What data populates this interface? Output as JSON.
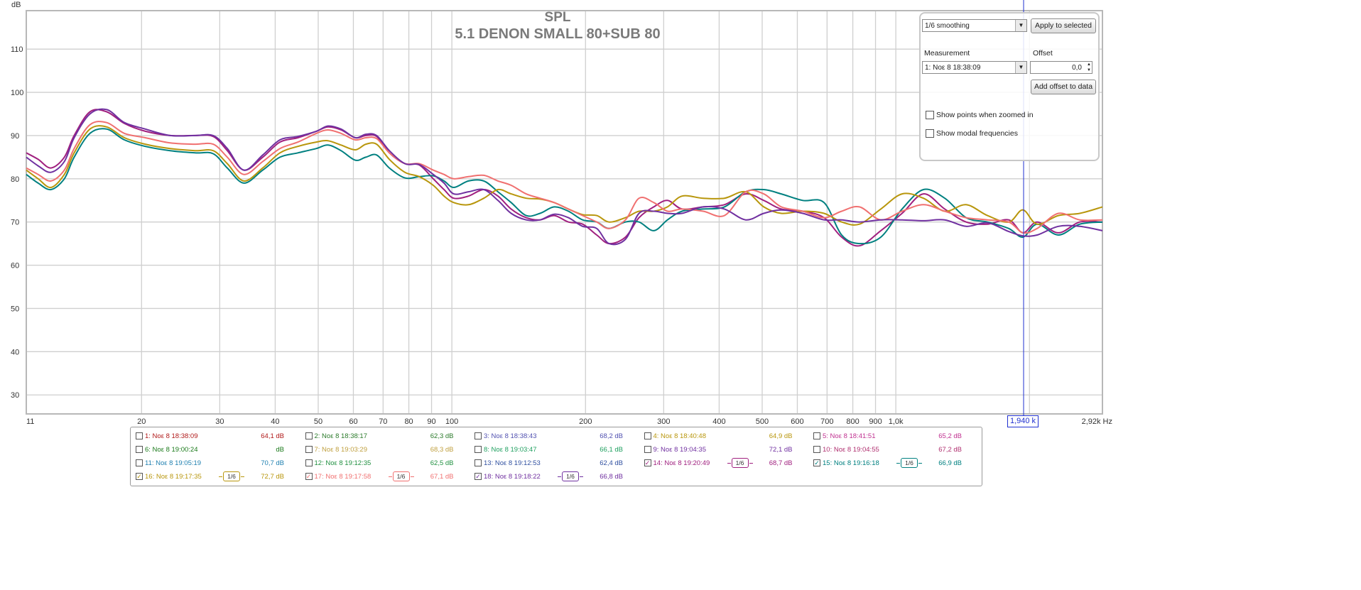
{
  "chart_data": {
    "type": "line",
    "title": "SPL",
    "subtitle": "5.1 DENON SMALL 80+SUB 80",
    "ylabel": "dB",
    "xlabel": "Hz",
    "xscale": "log",
    "xlim": [
      11,
      2920
    ],
    "ylim": [
      25.6,
      118.9
    ],
    "grid": true,
    "y_ticks": [
      30,
      40,
      50,
      60,
      70,
      80,
      90,
      100,
      110
    ],
    "x_ticks": [
      {
        "value": 11,
        "label": "11"
      },
      {
        "value": 20,
        "label": "20"
      },
      {
        "value": 30,
        "label": "30"
      },
      {
        "value": 40,
        "label": "40"
      },
      {
        "value": 50,
        "label": "50"
      },
      {
        "value": 60,
        "label": "60"
      },
      {
        "value": 70,
        "label": "70"
      },
      {
        "value": 80,
        "label": "80"
      },
      {
        "value": 90,
        "label": "90"
      },
      {
        "value": 100,
        "label": "100"
      },
      {
        "value": 200,
        "label": "200"
      },
      {
        "value": 300,
        "label": "300"
      },
      {
        "value": 400,
        "label": "400"
      },
      {
        "value": 500,
        "label": "500"
      },
      {
        "value": 600,
        "label": "600"
      },
      {
        "value": 700,
        "label": "700"
      },
      {
        "value": 800,
        "label": "800"
      },
      {
        "value": 900,
        "label": "900"
      },
      {
        "value": 1000,
        "label": "1,0k"
      },
      {
        "value": 2920,
        "label": "2,92k Hz"
      }
    ],
    "extra_gridlines": [
      2000
    ],
    "cursor": {
      "value": 1940,
      "label": "1,940 k",
      "color": "#2030d0"
    },
    "x": [
      11,
      11.7,
      12.5,
      13.4,
      14.1,
      15.3,
      16.7,
      18.3,
      20.4,
      23.2,
      26.4,
      29,
      31.2,
      34,
      37.5,
      41,
      45,
      49.5,
      52.6,
      56.3,
      60.6,
      64,
      67.7,
      72.3,
      78.4,
      84.4,
      90.8,
      96,
      101,
      109,
      118,
      127,
      136,
      147,
      158,
      170,
      183,
      197,
      212,
      226,
      246,
      264,
      285,
      306,
      330,
      368,
      411,
      459,
      504,
      552,
      617,
      689,
      755,
      828,
      925,
      1033,
      1154,
      1289,
      1440,
      1608,
      1796,
      1933,
      2081,
      2324,
      2596,
      2920
    ],
    "series": [
      {
        "name": "14: Νοε 8 19:20:49",
        "color": "#a0207f",
        "values": [
          86,
          84.5,
          82.5,
          85,
          90,
          95.5,
          95.5,
          92.8,
          91,
          90,
          90,
          89.8,
          86.5,
          82,
          85,
          88.5,
          89.5,
          91,
          92,
          91.3,
          89.5,
          90,
          89.8,
          86,
          83.5,
          83.2,
          80,
          77.5,
          75.5,
          76,
          77.5,
          76,
          73,
          71,
          70.5,
          71.5,
          70,
          69.5,
          67,
          65,
          66.5,
          71,
          73.5,
          75,
          73,
          73.5,
          74,
          76.5,
          75,
          73,
          72.5,
          71,
          66.5,
          64.5,
          68,
          72,
          76.5,
          73,
          70,
          69.5,
          70.5,
          67.5,
          70,
          67.5,
          70,
          70
        ]
      },
      {
        "name": "15: Νοε 8 19:16:18",
        "color": "#008080",
        "values": [
          81,
          79,
          77.5,
          80,
          85,
          90.5,
          91.5,
          89,
          87.5,
          86.5,
          86,
          85.8,
          82.5,
          79,
          82,
          85,
          86,
          87,
          87.8,
          86.5,
          84.3,
          85,
          85.5,
          82.5,
          80.2,
          80.5,
          80.7,
          79.5,
          78,
          79.5,
          79.5,
          77,
          74.5,
          71.5,
          72,
          73.5,
          72.5,
          70.5,
          70,
          68.5,
          70,
          70,
          68,
          70.5,
          72.5,
          73,
          73.5,
          77,
          77.5,
          76.5,
          75,
          74.5,
          67,
          65,
          66.5,
          73,
          77.5,
          75.5,
          71,
          70,
          68.5,
          66.5,
          69.5,
          67,
          69.5,
          70
        ]
      },
      {
        "name": "16: Νοε 8 19:17:35",
        "color": "#b8960c",
        "values": [
          82,
          80,
          78,
          81,
          86,
          91.5,
          92,
          89.5,
          88,
          87,
          86.5,
          86.5,
          83.5,
          79.5,
          82.5,
          86,
          87.5,
          88.5,
          88.8,
          87.8,
          86.7,
          88,
          88,
          84.5,
          81.5,
          80.5,
          78.5,
          76,
          74.5,
          74,
          75.5,
          77.5,
          76.5,
          75.5,
          75.3,
          74.5,
          73,
          71.7,
          71.5,
          70,
          71,
          72.5,
          72.5,
          73.5,
          76,
          75.5,
          75.5,
          77,
          73.5,
          72,
          72.5,
          72,
          70,
          69.5,
          73,
          76.5,
          75.5,
          72.5,
          74,
          71.5,
          70,
          72.8,
          69.5,
          71.5,
          72,
          73.5
        ]
      },
      {
        "name": "17: Νοε 8 19:17:58",
        "color": "#f07070",
        "values": [
          82.5,
          81,
          79.5,
          82,
          87,
          92.5,
          93,
          90.5,
          89.5,
          88.3,
          88,
          88,
          85,
          81,
          84,
          87,
          88.5,
          90.5,
          91.3,
          90.5,
          89,
          89.5,
          89.3,
          86,
          83.5,
          83.5,
          82,
          81,
          80,
          80.5,
          80.8,
          79.5,
          78.5,
          76.5,
          75.5,
          74.5,
          73,
          71.5,
          70,
          68.5,
          70.5,
          75.5,
          74.5,
          72.5,
          73,
          72.5,
          71.5,
          77,
          76.5,
          73.5,
          72.5,
          71,
          72.5,
          73.5,
          70.5,
          72.5,
          74,
          72.5,
          71,
          70.5,
          70,
          67.5,
          68.5,
          72,
          70.5,
          70.5
        ]
      },
      {
        "name": "18: Νοε 8 19:18:22",
        "color": "#7030a0",
        "values": [
          85,
          83,
          81.5,
          84,
          89.5,
          95,
          96,
          93,
          91.5,
          90,
          90,
          90,
          87,
          82,
          85.5,
          89,
          89.8,
          91,
          92.2,
          91.5,
          89.5,
          90.3,
          90,
          86.5,
          83.5,
          83.3,
          81,
          79,
          76.5,
          77,
          77.5,
          75,
          72,
          70.5,
          70.5,
          71.8,
          71,
          69,
          68.5,
          65,
          66,
          72,
          72.5,
          72,
          72,
          73.5,
          73,
          70.5,
          72,
          72.8,
          72,
          70.5,
          70.5,
          70,
          70.5,
          70.5,
          70.3,
          70.5,
          69,
          69.8,
          67.8,
          66.8,
          67,
          69,
          69,
          68
        ]
      }
    ]
  },
  "panel": {
    "smoothing": "1/6 smoothing",
    "apply_label": "Apply to selected",
    "measurement_label": "Measurement",
    "offset_label": "Offset",
    "measurement_value": "1: Νοε 8 18:38:09",
    "offset_value": "0,0",
    "add_offset_label": "Add offset to data",
    "show_points_label": "Show points when zoomed in",
    "show_modal_label": "Show modal frequencies"
  },
  "legend": [
    {
      "label": "1: Νοε 8 18:38:09",
      "value": "64,1 dB",
      "color": "#b01818",
      "checked": false,
      "smoothing": ""
    },
    {
      "label": "2: Νοε 8 18:38:17",
      "value": "62,3 dB",
      "color": "#2a7a2a",
      "checked": false,
      "smoothing": ""
    },
    {
      "label": "3: Νοε 8 18:38:43",
      "value": "68,2 dB",
      "color": "#5050b0",
      "checked": false,
      "smoothing": ""
    },
    {
      "label": "4: Νοε 8 18:40:48",
      "value": "64,9 dB",
      "color": "#b8960c",
      "checked": false,
      "smoothing": ""
    },
    {
      "label": "5: Νοε 8 18:41:51",
      "value": "65,2 dB",
      "color": "#c03090",
      "checked": false,
      "smoothing": ""
    },
    {
      "label": "6: Νοε 8 19:00:24",
      "value": "dB",
      "color": "#1a7a1a",
      "checked": false,
      "smoothing": ""
    },
    {
      "label": "7: Νοε 8 19:03:29",
      "value": "68,3 dB",
      "color": "#c0a040",
      "checked": false,
      "smoothing": ""
    },
    {
      "label": "8: Νοε 8 19:03:47",
      "value": "66,1 dB",
      "color": "#20a060",
      "checked": false,
      "smoothing": ""
    },
    {
      "label": "9: Νοε 8 19:04:35",
      "value": "72,1 dB",
      "color": "#7030a0",
      "checked": false,
      "smoothing": ""
    },
    {
      "label": "10: Νοε 8 19:04:55",
      "value": "67,2 dB",
      "color": "#b03070",
      "checked": false,
      "smoothing": ""
    },
    {
      "label": "11: Νοε 8 19:05:19",
      "value": "70,7 dB",
      "color": "#2080b0",
      "checked": false,
      "smoothing": ""
    },
    {
      "label": "12: Νοε 8 19:12:35",
      "value": "62,5 dB",
      "color": "#209040",
      "checked": false,
      "smoothing": ""
    },
    {
      "label": "13: Νοε 8 19:12:53",
      "value": "62,4 dB",
      "color": "#3050a0",
      "checked": false,
      "smoothing": ""
    },
    {
      "label": "14: Νοε 8 19:20:49",
      "value": "68,7 dB",
      "color": "#a0207f",
      "checked": true,
      "smoothing": "1/6"
    },
    {
      "label": "15: Νοε 8 19:16:18",
      "value": "66,9 dB",
      "color": "#008080",
      "checked": true,
      "smoothing": "1/6"
    },
    {
      "label": "16: Νοε 8 19:17:35",
      "value": "72,7 dB",
      "color": "#b8960c",
      "checked": true,
      "smoothing": "1/6"
    },
    {
      "label": "17: Νοε 8 19:17:58",
      "value": "67,1 dB",
      "color": "#f07070",
      "checked": true,
      "smoothing": "1/6"
    },
    {
      "label": "18: Νοε 8 19:18:22",
      "value": "66,8 dB",
      "color": "#7030a0",
      "checked": true,
      "smoothing": "1/6"
    }
  ]
}
